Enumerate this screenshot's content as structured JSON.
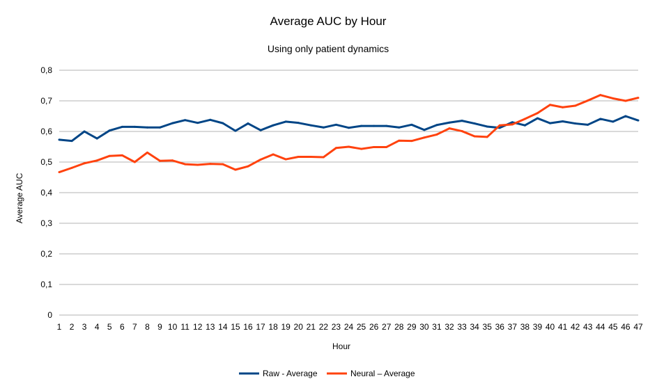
{
  "chart_data": {
    "type": "line",
    "title": "Average AUC by Hour",
    "subtitle": "Using only patient dynamics",
    "xlabel": "Hour",
    "ylabel": "Average AUC",
    "ylim": [
      0,
      0.8
    ],
    "ytick_step": 0.1,
    "ytick_labels": [
      "0",
      "0,1",
      "0,2",
      "0,3",
      "0,4",
      "0,5",
      "0,6",
      "0,7",
      "0,8"
    ],
    "categories": [
      "1",
      "2",
      "3",
      "4",
      "5",
      "6",
      "7",
      "8",
      "9",
      "10",
      "11",
      "12",
      "13",
      "14",
      "15",
      "16",
      "17",
      "18",
      "19",
      "20",
      "21",
      "22",
      "23",
      "24",
      "25",
      "26",
      "27",
      "28",
      "29",
      "30",
      "31",
      "32",
      "33",
      "34",
      "35",
      "36",
      "37",
      "38",
      "39",
      "40",
      "41",
      "42",
      "43",
      "44",
      "45",
      "46",
      "47"
    ],
    "grid": true,
    "legend_position": "bottom",
    "series": [
      {
        "name": "Raw - Average",
        "color": "#004586",
        "values": [
          0.573,
          0.569,
          0.6,
          0.577,
          0.603,
          0.615,
          0.615,
          0.613,
          0.613,
          0.627,
          0.637,
          0.628,
          0.638,
          0.627,
          0.602,
          0.626,
          0.604,
          0.62,
          0.632,
          0.628,
          0.62,
          0.613,
          0.622,
          0.612,
          0.618,
          0.618,
          0.618,
          0.613,
          0.622,
          0.605,
          0.621,
          0.629,
          0.635,
          0.626,
          0.616,
          0.612,
          0.63,
          0.62,
          0.643,
          0.627,
          0.633,
          0.626,
          0.622,
          0.641,
          0.632,
          0.65,
          0.636
        ]
      },
      {
        "name": "Neural – Average",
        "color": "#ff420e",
        "values": [
          0.467,
          0.481,
          0.496,
          0.505,
          0.52,
          0.522,
          0.5,
          0.531,
          0.504,
          0.505,
          0.493,
          0.491,
          0.494,
          0.493,
          0.475,
          0.486,
          0.508,
          0.525,
          0.509,
          0.517,
          0.517,
          0.516,
          0.546,
          0.55,
          0.543,
          0.549,
          0.549,
          0.57,
          0.569,
          0.58,
          0.59,
          0.61,
          0.601,
          0.584,
          0.582,
          0.62,
          0.623,
          0.641,
          0.66,
          0.687,
          0.679,
          0.684,
          0.701,
          0.719,
          0.708,
          0.7,
          0.71
        ]
      }
    ]
  }
}
